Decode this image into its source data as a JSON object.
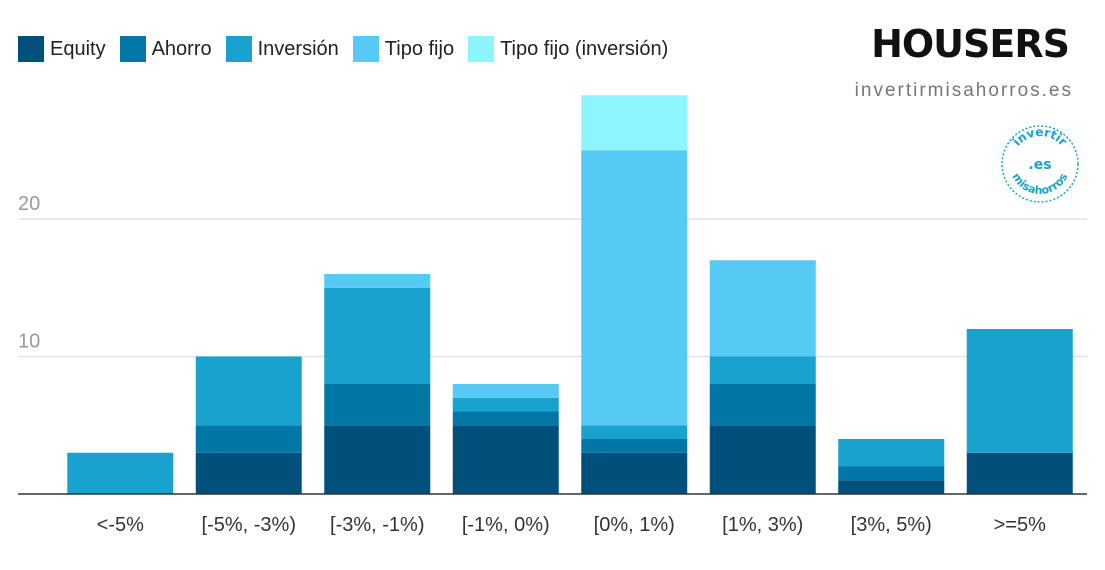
{
  "legend": [
    {
      "label": "Equity",
      "color": "#01507b"
    },
    {
      "label": "Ahorro",
      "color": "#0277a5"
    },
    {
      "label": "Inversión",
      "color": "#1aa2cf"
    },
    {
      "label": "Tipo fijo",
      "color": "#57c9f5"
    },
    {
      "label": "Tipo fijo (inversión)",
      "color": "#8df5fd"
    }
  ],
  "brand": {
    "logo_text": "HOUSERS",
    "site": "invertirmisahorros.es",
    "seal_text_top": "invertir",
    "seal_text_center": ".es",
    "seal_text_bottom": "misahorros",
    "seal_color": "#1aa2cf"
  },
  "chart_data": {
    "type": "bar",
    "stacked": true,
    "categories": [
      "<-5%",
      "[-5%, -3%)",
      "[-3%, -1%)",
      "[-1%, 0%)",
      "[0%, 1%)",
      "[1%, 3%)",
      "[3%, 5%)",
      ">=5%"
    ],
    "series": [
      {
        "name": "Equity",
        "color": "#01507b",
        "values": [
          0,
          3,
          5,
          5,
          3,
          5,
          1,
          3
        ]
      },
      {
        "name": "Ahorro",
        "color": "#0277a5",
        "values": [
          0,
          2,
          3,
          1,
          1,
          3,
          1,
          0
        ]
      },
      {
        "name": "Inversión",
        "color": "#1aa2cf",
        "values": [
          3,
          5,
          7,
          1,
          1,
          2,
          2,
          9
        ]
      },
      {
        "name": "Tipo fijo",
        "color": "#57c9f5",
        "values": [
          0,
          0,
          1,
          1,
          20,
          7,
          0,
          0
        ]
      },
      {
        "name": "Tipo fijo (inversión)",
        "color": "#8df5fd",
        "values": [
          0,
          0,
          0,
          0,
          4,
          0,
          0,
          0
        ]
      }
    ],
    "yticks": [
      10,
      20
    ],
    "ylim": [
      0,
      29
    ],
    "grid": true,
    "legend_position": "top-left"
  }
}
